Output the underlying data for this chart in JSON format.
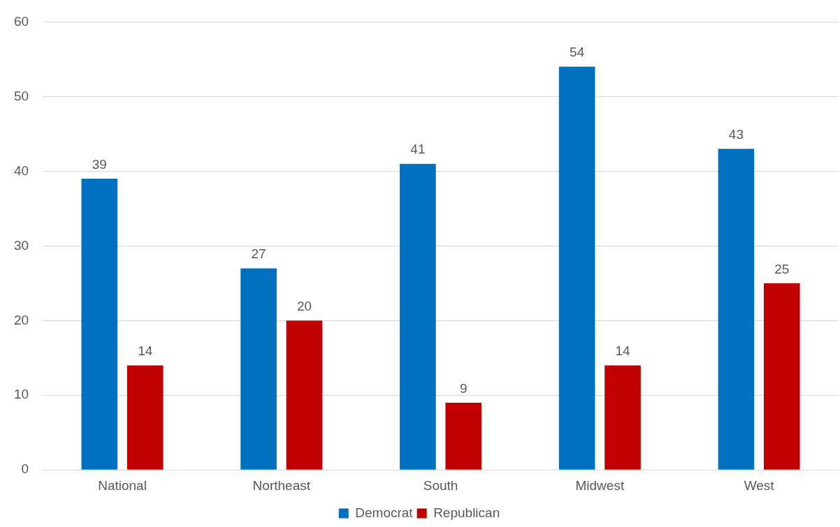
{
  "chart_data": {
    "type": "bar",
    "categories": [
      "National",
      "Northeast",
      "South",
      "Midwest",
      "West"
    ],
    "series": [
      {
        "name": "Democrat",
        "color": "#0070c0",
        "values": [
          39,
          27,
          41,
          54,
          43
        ]
      },
      {
        "name": "Republican",
        "color": "#c00000",
        "values": [
          14,
          20,
          9,
          14,
          25
        ]
      }
    ],
    "ylim": [
      0,
      60
    ],
    "yticks": [
      0,
      10,
      20,
      30,
      40,
      50,
      60
    ],
    "grid": "y",
    "legend": "bottom",
    "data_labels": true
  }
}
